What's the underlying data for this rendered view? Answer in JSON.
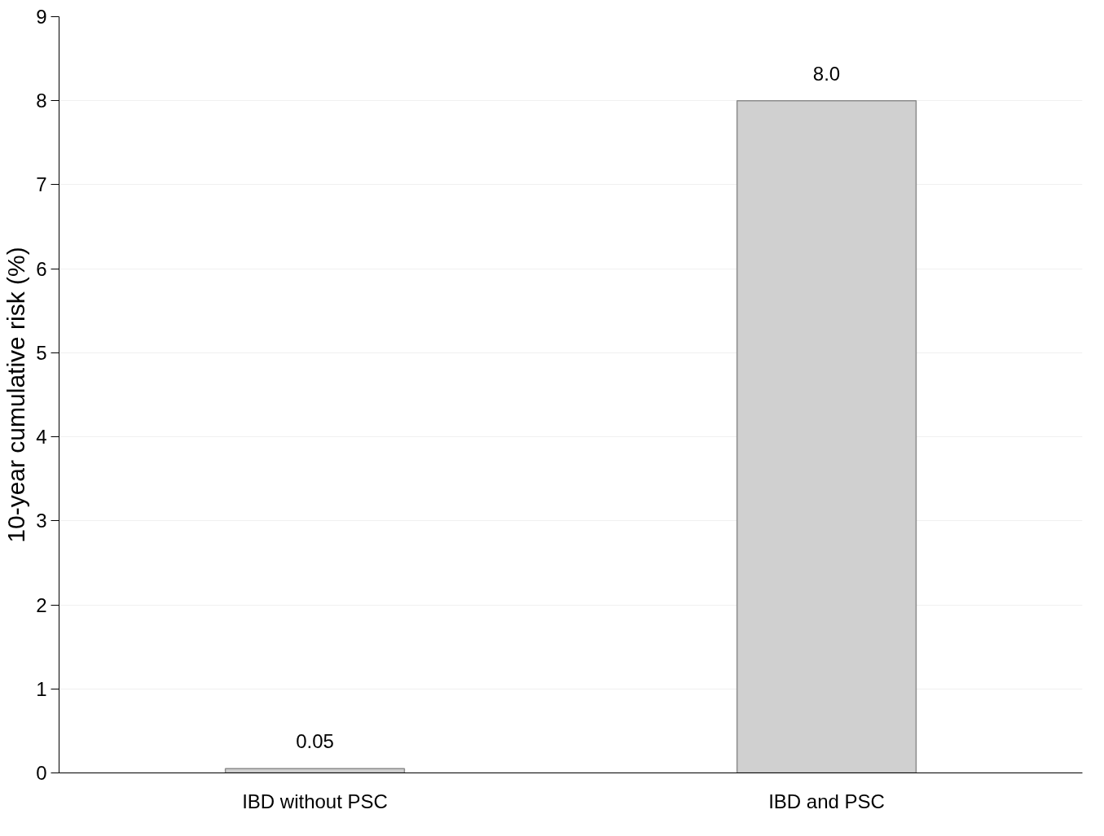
{
  "chart_data": {
    "type": "bar",
    "ylabel": "10-year cumulative risk (%)",
    "categories": [
      "IBD without PSC",
      "IBD and PSC"
    ],
    "values": [
      0.05,
      8.0
    ],
    "color": "#d0d0d0",
    "value_labels": [
      "0.05",
      "8.0"
    ],
    "ylim": [
      0,
      9
    ],
    "yticks": [
      0,
      1,
      2,
      3,
      4,
      5,
      6,
      7,
      8,
      9
    ],
    "grid": "y"
  }
}
